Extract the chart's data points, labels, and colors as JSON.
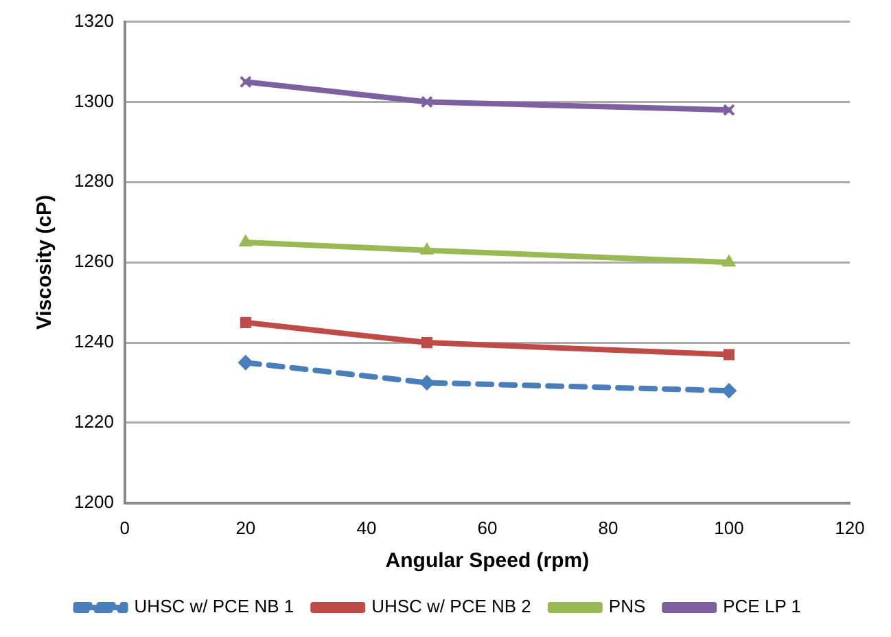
{
  "chart_data": {
    "type": "line",
    "xlabel": "Angular Speed (rpm)",
    "ylabel": "Viscosity (cP)",
    "x": [
      20,
      50,
      100
    ],
    "xlim": [
      0,
      120
    ],
    "xticks": [
      0,
      20,
      40,
      60,
      80,
      100,
      120
    ],
    "ylim": [
      1200,
      1320
    ],
    "yticks": [
      1200,
      1220,
      1240,
      1260,
      1280,
      1300,
      1320
    ],
    "grid": "y",
    "legend": "bottom",
    "series": [
      {
        "name": "UHSC w/ PCE NB 1",
        "color": "#4a7ebb",
        "values": [
          1235,
          1230,
          1228
        ],
        "marker": "diamond",
        "line_style": "dashed"
      },
      {
        "name": "UHSC w/ PCE NB 2",
        "color": "#be4b48",
        "values": [
          1245,
          1240,
          1237
        ],
        "marker": "square",
        "line_style": "solid"
      },
      {
        "name": "PNS",
        "color": "#98b954",
        "values": [
          1265,
          1263,
          1260
        ],
        "marker": "triangle",
        "line_style": "solid"
      },
      {
        "name": "PCE LP 1",
        "color": "#7d60a0",
        "values": [
          1305,
          1300,
          1298
        ],
        "marker": "cross",
        "line_style": "solid"
      }
    ]
  }
}
